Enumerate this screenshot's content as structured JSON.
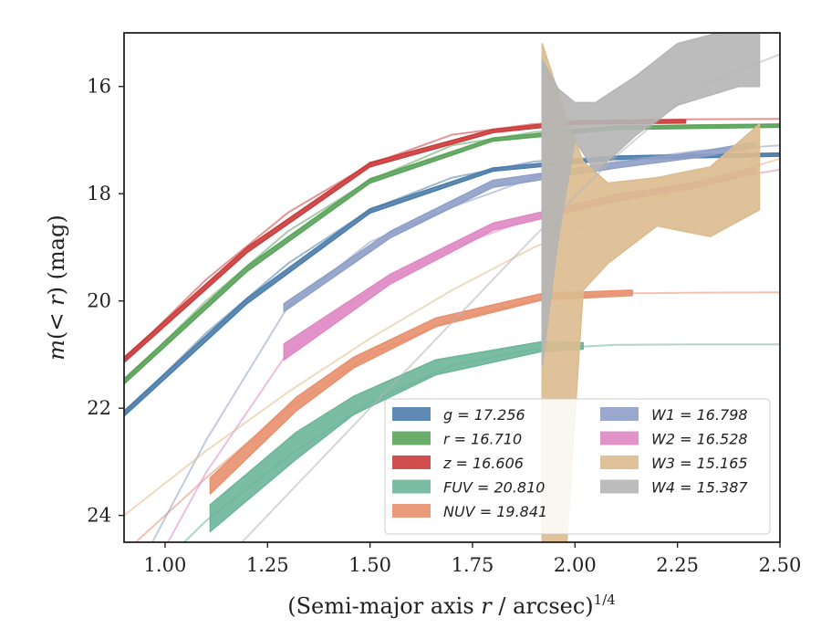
{
  "chart_data": {
    "type": "line",
    "xlabel": "(Semi-major axis r / arcsec)^{1/4}",
    "ylabel": "m(< r) (mag)",
    "xlim": [
      0.9,
      2.5
    ],
    "ylim": [
      24.5,
      15.0
    ],
    "y_inverted": true,
    "xticks": [
      "1.00",
      "1.25",
      "1.50",
      "1.75",
      "2.00",
      "2.25",
      "2.50"
    ],
    "yticks": [
      "16",
      "18",
      "20",
      "22",
      "24"
    ],
    "grid": false,
    "legend_position": "lower-right",
    "legend_columns": 2,
    "series": [
      {
        "name": "g = 17.256",
        "color": "#4c7dab",
        "asymptote": 17.256,
        "fit": [
          [
            0.9,
            22.1
          ],
          [
            1.1,
            20.6
          ],
          [
            1.3,
            19.3
          ],
          [
            1.5,
            18.3
          ],
          [
            1.7,
            17.7
          ],
          [
            1.9,
            17.4
          ],
          [
            2.1,
            17.3
          ],
          [
            2.3,
            17.27
          ],
          [
            2.5,
            17.26
          ]
        ],
        "band": [
          [
            0.9,
            22.05,
            22.15
          ],
          [
            1.2,
            19.95,
            20.05
          ],
          [
            1.5,
            18.28,
            18.36
          ],
          [
            1.8,
            17.52,
            17.58
          ],
          [
            2.1,
            17.3,
            17.36
          ],
          [
            2.5,
            17.24,
            17.3
          ]
        ]
      },
      {
        "name": "r = 16.710",
        "color": "#5aa35a",
        "asymptote": 16.71,
        "fit": [
          [
            0.9,
            21.5
          ],
          [
            1.1,
            20.0
          ],
          [
            1.3,
            18.7
          ],
          [
            1.5,
            17.75
          ],
          [
            1.7,
            17.1
          ],
          [
            1.9,
            16.85
          ],
          [
            2.1,
            16.75
          ],
          [
            2.3,
            16.72
          ],
          [
            2.5,
            16.71
          ]
        ],
        "band": [
          [
            0.9,
            21.45,
            21.55
          ],
          [
            1.2,
            19.35,
            19.45
          ],
          [
            1.5,
            17.72,
            17.8
          ],
          [
            1.8,
            16.96,
            17.02
          ],
          [
            2.1,
            16.74,
            16.8
          ],
          [
            2.5,
            16.7,
            16.76
          ]
        ]
      },
      {
        "name": "z = 16.606",
        "color": "#cc3b3b",
        "asymptote": 16.606,
        "fit": [
          [
            0.9,
            21.1
          ],
          [
            1.1,
            19.6
          ],
          [
            1.3,
            18.35
          ],
          [
            1.5,
            17.45
          ],
          [
            1.7,
            16.9
          ],
          [
            1.9,
            16.7
          ],
          [
            2.1,
            16.63
          ],
          [
            2.3,
            16.61
          ],
          [
            2.5,
            16.606
          ]
        ],
        "band": [
          [
            0.9,
            21.05,
            21.15
          ],
          [
            1.2,
            19.0,
            19.1
          ],
          [
            1.5,
            17.42,
            17.5
          ],
          [
            1.8,
            16.8,
            16.86
          ],
          [
            2.0,
            16.64,
            16.7
          ],
          [
            2.27,
            16.62,
            16.68
          ]
        ]
      },
      {
        "name": "FUV = 20.810",
        "color": "#6cb59a",
        "asymptote": 20.81,
        "fit": [
          [
            0.9,
            25.6
          ],
          [
            1.1,
            24.1
          ],
          [
            1.3,
            22.9
          ],
          [
            1.5,
            21.9
          ],
          [
            1.7,
            21.2
          ],
          [
            1.9,
            20.9
          ],
          [
            2.1,
            20.82
          ],
          [
            2.3,
            20.81
          ],
          [
            2.5,
            20.81
          ]
        ],
        "band": [
          [
            1.11,
            23.8,
            24.3
          ],
          [
            1.32,
            22.45,
            22.95
          ],
          [
            1.46,
            21.78,
            22.12
          ],
          [
            1.66,
            21.1,
            21.38
          ],
          [
            1.92,
            20.76,
            20.94
          ],
          [
            2.02,
            20.78,
            20.9
          ]
        ]
      },
      {
        "name": "NUV = 19.841",
        "color": "#e8906e",
        "asymptote": 19.841,
        "fit": [
          [
            0.9,
            24.7
          ],
          [
            1.1,
            23.3
          ],
          [
            1.3,
            22.0
          ],
          [
            1.5,
            21.0
          ],
          [
            1.7,
            20.35
          ],
          [
            1.9,
            20.0
          ],
          [
            2.1,
            19.86
          ],
          [
            2.3,
            19.845
          ],
          [
            2.5,
            19.841
          ]
        ],
        "band": [
          [
            1.11,
            23.3,
            23.6
          ],
          [
            1.32,
            21.8,
            22.05
          ],
          [
            1.46,
            21.05,
            21.25
          ],
          [
            1.66,
            20.32,
            20.48
          ],
          [
            1.92,
            19.86,
            19.98
          ],
          [
            2.14,
            19.8,
            19.9
          ]
        ]
      },
      {
        "name": "W1 = 16.798",
        "color": "#8f9fc8",
        "asymptote": 16.798,
        "fit": [
          [
            0.9,
            25.5
          ],
          [
            1.1,
            22.6
          ],
          [
            1.3,
            20.1
          ],
          [
            1.5,
            18.9
          ],
          [
            1.7,
            18.25
          ],
          [
            1.9,
            17.7
          ],
          [
            2.1,
            17.4
          ],
          [
            2.3,
            17.2
          ],
          [
            2.5,
            17.1
          ]
        ],
        "band": [
          [
            1.29,
            20.05,
            20.2
          ],
          [
            1.55,
            18.7,
            18.82
          ],
          [
            1.8,
            17.75,
            17.88
          ],
          [
            2.1,
            17.42,
            17.52
          ],
          [
            2.3,
            17.22,
            17.32
          ],
          [
            2.44,
            17.04,
            17.14
          ]
        ]
      },
      {
        "name": "W2 = 16.528",
        "color": "#df88c4",
        "asymptote": 16.528,
        "fit": [
          [
            0.9,
            26.0
          ],
          [
            1.1,
            23.2
          ],
          [
            1.3,
            20.95
          ],
          [
            1.5,
            19.8
          ],
          [
            1.7,
            19.0
          ],
          [
            1.9,
            18.45
          ],
          [
            2.1,
            18.1
          ],
          [
            2.3,
            17.8
          ],
          [
            2.5,
            17.55
          ]
        ],
        "band": [
          [
            1.29,
            20.8,
            21.1
          ],
          [
            1.55,
            19.5,
            19.68
          ],
          [
            1.8,
            18.55,
            18.68
          ],
          [
            2.1,
            18.02,
            18.14
          ],
          [
            2.3,
            17.78,
            17.88
          ],
          [
            2.44,
            17.5,
            17.62
          ]
        ]
      },
      {
        "name": "W3 = 15.165",
        "color": "#dcbb8e",
        "asymptote": 15.165,
        "fit": [
          [
            0.9,
            24.0
          ],
          [
            1.1,
            22.8
          ],
          [
            1.3,
            21.7
          ],
          [
            1.5,
            20.7
          ],
          [
            1.7,
            19.8
          ],
          [
            1.9,
            19.0
          ],
          [
            2.1,
            18.35
          ],
          [
            2.3,
            17.8
          ],
          [
            2.5,
            17.35
          ]
        ],
        "band": [
          [
            1.92,
            26.0,
            15.2
          ],
          [
            1.98,
            24.5,
            16.6
          ],
          [
            2.02,
            19.8,
            17.4
          ],
          [
            2.08,
            19.3,
            17.8
          ],
          [
            2.2,
            18.6,
            17.7
          ],
          [
            2.33,
            18.8,
            17.5
          ],
          [
            2.45,
            18.3,
            16.7
          ]
        ]
      },
      {
        "name": "W4 = 15.387",
        "color": "#b5b5b5",
        "asymptote": 15.387,
        "fit": [
          [
            0.9,
            26.5
          ],
          [
            1.1,
            25.2
          ],
          [
            1.3,
            23.6
          ],
          [
            1.5,
            22.0
          ],
          [
            1.7,
            20.4
          ],
          [
            1.9,
            18.8
          ],
          [
            2.1,
            17.3
          ],
          [
            2.3,
            16.0
          ],
          [
            2.5,
            15.4
          ]
        ],
        "band": [
          [
            1.92,
            21.2,
            15.5
          ],
          [
            1.96,
            18.8,
            16.05
          ],
          [
            2.0,
            17.0,
            16.3
          ],
          [
            2.05,
            17.6,
            16.3
          ],
          [
            2.15,
            16.9,
            15.8
          ],
          [
            2.25,
            16.35,
            15.2
          ],
          [
            2.4,
            16.0,
            14.9
          ],
          [
            2.45,
            16.0,
            14.85
          ]
        ]
      }
    ]
  }
}
